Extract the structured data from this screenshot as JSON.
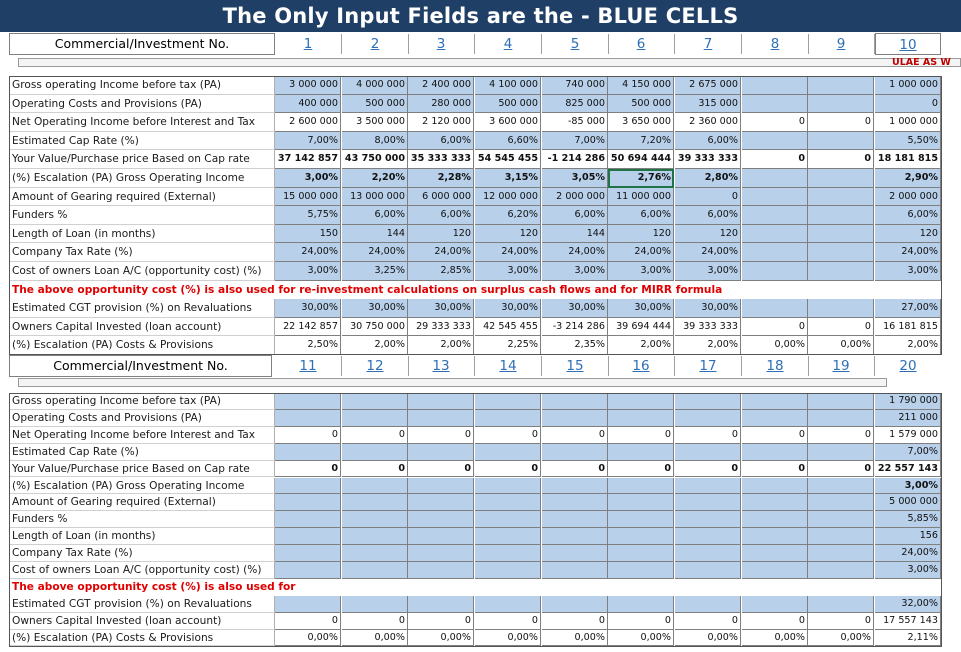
{
  "banner": "The Only Input Fields are the  - BLUE CELLS",
  "header_label": "Commercial/Investment No.",
  "red_partial": "ULAE AS W",
  "section1": {
    "numbers": [
      "1",
      "2",
      "3",
      "4",
      "5",
      "6",
      "7",
      "8",
      "9",
      "10"
    ],
    "rows": [
      {
        "label": "Gross operating Income before tax (PA)",
        "cells": [
          "3 000 000",
          "4 000 000",
          "2 400 000",
          "4 100 000",
          "740 000",
          "4 150 000",
          "2 675 000",
          "",
          "",
          "1 000 000"
        ],
        "style": "blue"
      },
      {
        "label": "Operating Costs and Provisions (PA)",
        "cells": [
          "400 000",
          "500 000",
          "280 000",
          "500 000",
          "825 000",
          "500 000",
          "315 000",
          "",
          "",
          "0"
        ],
        "style": "blue"
      },
      {
        "label": "Net Operating Income before Interest and Tax",
        "cells": [
          "2 600 000",
          "3 500 000",
          "2 120 000",
          "3 600 000",
          "-85 000",
          "3 650 000",
          "2 360 000",
          "0",
          "0",
          "1 000 000"
        ],
        "style": "white"
      },
      {
        "label": "Estimated Cap Rate (%)",
        "cells": [
          "7,00%",
          "8,00%",
          "6,00%",
          "6,60%",
          "7,00%",
          "7,20%",
          "6,00%",
          "",
          "",
          "5,50%"
        ],
        "style": "blue"
      },
      {
        "label": "Your Value/Purchase price  Based on Cap rate",
        "cells": [
          "37 142 857",
          "43 750 000",
          "35 333 333",
          "54 545 455",
          "-1 214 286",
          "50 694 444",
          "39 333 333",
          "0",
          "0",
          "18 181 815"
        ],
        "style": "white",
        "bold": true
      },
      {
        "label": "(%) Escalation (PA) Gross Operating Income",
        "cells": [
          "3,00%",
          "2,20%",
          "2,28%",
          "3,15%",
          "3,05%",
          "2,76%",
          "2,80%",
          "",
          "",
          "2,90%"
        ],
        "style": "blue",
        "bold": true
      },
      {
        "label": "Amount of Gearing required (External)",
        "cells": [
          "15 000 000",
          "13 000 000",
          "6 000 000",
          "12 000 000",
          "2 000 000",
          "11 000 000",
          "0",
          "",
          "",
          "2 000 000"
        ],
        "style": "blue"
      },
      {
        "label": "Funders %",
        "cells": [
          "5,75%",
          "6,00%",
          "6,00%",
          "6,20%",
          "6,00%",
          "6,00%",
          "6,00%",
          "",
          "",
          "6,00%"
        ],
        "style": "blue"
      },
      {
        "label": "Length of Loan (in months)",
        "cells": [
          "150",
          "144",
          "120",
          "120",
          "144",
          "120",
          "120",
          "",
          "",
          "120"
        ],
        "style": "blue"
      },
      {
        "label": "Company Tax Rate (%)",
        "cells": [
          "24,00%",
          "24,00%",
          "24,00%",
          "24,00%",
          "24,00%",
          "24,00%",
          "24,00%",
          "",
          "",
          "24,00%"
        ],
        "style": "blue"
      },
      {
        "label": "Cost of owners Loan A/C (opportunity cost) (%)",
        "cells": [
          "3,00%",
          "3,25%",
          "2,85%",
          "3,00%",
          "3,00%",
          "3,00%",
          "3,00%",
          "",
          "",
          "3,00%"
        ],
        "style": "blue"
      }
    ],
    "note": "The above opportunity cost (%) is also used for re-investment calculations on surplus cash flows and for MIRR formula",
    "rows_after": [
      {
        "label": "Estimated CGT provision (%) on Revaluations",
        "cells": [
          "30,00%",
          "30,00%",
          "30,00%",
          "30,00%",
          "30,00%",
          "30,00%",
          "30,00%",
          "",
          "",
          "27,00%"
        ],
        "style": "blue"
      },
      {
        "label": "Owners Capital Invested (loan account)",
        "cells": [
          "22 142 857",
          "30 750 000",
          "29 333 333",
          "42 545 455",
          "-3 214 286",
          "39 694 444",
          "39 333 333",
          "0",
          "0",
          "16 181 815"
        ],
        "style": "white"
      },
      {
        "label": "(%) Escalation (PA) Costs & Provisions",
        "cells": [
          "2,50%",
          "2,00%",
          "2,00%",
          "2,25%",
          "2,35%",
          "2,00%",
          "2,00%",
          "0,00%",
          "0,00%",
          "2,00%"
        ],
        "style": "white"
      }
    ]
  },
  "section2": {
    "numbers": [
      "11",
      "12",
      "13",
      "14",
      "15",
      "16",
      "17",
      "18",
      "19",
      "20"
    ],
    "rows": [
      {
        "label": "Gross operating Income before tax (PA)",
        "cells": [
          "",
          "",
          "",
          "",
          "",
          "",
          "",
          "",
          "",
          "1 790 000"
        ],
        "style": "blue"
      },
      {
        "label": "Operating Costs and Provisions (PA)",
        "cells": [
          "",
          "",
          "",
          "",
          "",
          "",
          "",
          "",
          "",
          "211 000"
        ],
        "style": "blue"
      },
      {
        "label": "Net Operating Income before Interest and Tax",
        "cells": [
          "0",
          "0",
          "0",
          "0",
          "0",
          "0",
          "0",
          "0",
          "0",
          "1 579 000"
        ],
        "style": "white"
      },
      {
        "label": "Estimated Cap Rate (%)",
        "cells": [
          "",
          "",
          "",
          "",
          "",
          "",
          "",
          "",
          "",
          "7,00%"
        ],
        "style": "blue"
      },
      {
        "label": "Your Value/Purchase price  Based on Cap rate",
        "cells": [
          "0",
          "0",
          "0",
          "0",
          "0",
          "0",
          "0",
          "0",
          "0",
          "22 557 143"
        ],
        "style": "white",
        "bold": true
      },
      {
        "label": "(%) Escalation (PA) Gross Operating Income",
        "cells": [
          "",
          "",
          "",
          "",
          "",
          "",
          "",
          "",
          "",
          "3,00%"
        ],
        "style": "blue",
        "bold": true
      },
      {
        "label": "Amount of Gearing required (External)",
        "cells": [
          "",
          "",
          "",
          "",
          "",
          "",
          "",
          "",
          "",
          "5 000 000"
        ],
        "style": "blue"
      },
      {
        "label": "Funders %",
        "cells": [
          "",
          "",
          "",
          "",
          "",
          "",
          "",
          "",
          "",
          "5,85%"
        ],
        "style": "blue"
      },
      {
        "label": "Length of Loan (in months)",
        "cells": [
          "",
          "",
          "",
          "",
          "",
          "",
          "",
          "",
          "",
          "156"
        ],
        "style": "blue"
      },
      {
        "label": "Company Tax Rate (%)",
        "cells": [
          "",
          "",
          "",
          "",
          "",
          "",
          "",
          "",
          "",
          "24,00%"
        ],
        "style": "blue"
      },
      {
        "label": "Cost of owners Loan A/C (opportunity cost) (%)",
        "cells": [
          "",
          "",
          "",
          "",
          "",
          "",
          "",
          "",
          "",
          "3,00%"
        ],
        "style": "blue"
      }
    ],
    "note": "The above opportunity cost (%) is also used for",
    "rows_after": [
      {
        "label": "Estimated CGT provision (%) on Revaluations",
        "cells": [
          "",
          "",
          "",
          "",
          "",
          "",
          "",
          "",
          "",
          "32,00%"
        ],
        "style": "blue"
      },
      {
        "label": "Owners Capital Invested (loan account)",
        "cells": [
          "0",
          "0",
          "0",
          "0",
          "0",
          "0",
          "0",
          "0",
          "0",
          "17 557 143"
        ],
        "style": "white"
      },
      {
        "label": "(%) Escalation (PA) Costs & Provisions",
        "cells": [
          "0,00%",
          "0,00%",
          "0,00%",
          "0,00%",
          "0,00%",
          "0,00%",
          "0,00%",
          "0,00%",
          "0,00%",
          "2,11%"
        ],
        "style": "white"
      }
    ]
  },
  "colors": {
    "banner": "#1f3f66",
    "input_cell": "#b8d0ea",
    "link_number": "#2e6fb5",
    "note_red": "#e00000"
  }
}
